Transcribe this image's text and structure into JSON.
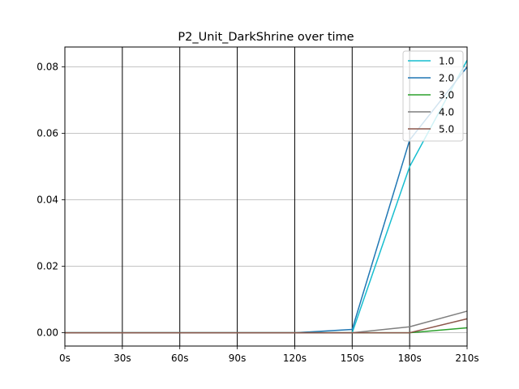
{
  "chart_data": {
    "type": "line",
    "title": "P2_Unit_DarkShrine over time",
    "xlabel": "",
    "ylabel": "",
    "x": [
      0,
      30,
      60,
      90,
      120,
      150,
      180,
      210
    ],
    "x_tick_labels": [
      "0s",
      "30s",
      "60s",
      "90s",
      "120s",
      "150s",
      "180s",
      "210s"
    ],
    "xlim": [
      0,
      210
    ],
    "ylim": [
      -0.004,
      0.086
    ],
    "y_ticks": [
      0.0,
      0.02,
      0.04,
      0.06,
      0.08
    ],
    "y_tick_labels": [
      "0.00",
      "0.02",
      "0.04",
      "0.06",
      "0.08"
    ],
    "grid": "y-major",
    "vertical_lines_at": [
      30,
      60,
      90,
      120,
      150,
      180
    ],
    "legend_position": "top-right",
    "series": [
      {
        "name": "1.0",
        "color": "#17becf",
        "values": [
          0,
          0,
          0,
          0,
          0,
          0,
          0.05,
          0.082
        ]
      },
      {
        "name": "2.0",
        "color": "#1f77b4",
        "values": [
          0,
          0,
          0,
          0,
          0,
          0.001,
          0.058,
          0.08
        ]
      },
      {
        "name": "3.0",
        "color": "#2ca02c",
        "values": [
          0,
          0,
          0,
          0,
          0,
          0,
          0,
          0.0015
        ]
      },
      {
        "name": "4.0",
        "color": "#7f7f7f",
        "values": [
          0,
          0,
          0,
          0,
          0,
          0,
          0.0018,
          0.0065
        ]
      },
      {
        "name": "5.0",
        "color": "#8c564b",
        "values": [
          0,
          0,
          0,
          0,
          0,
          0,
          0,
          0.0042
        ]
      }
    ]
  }
}
